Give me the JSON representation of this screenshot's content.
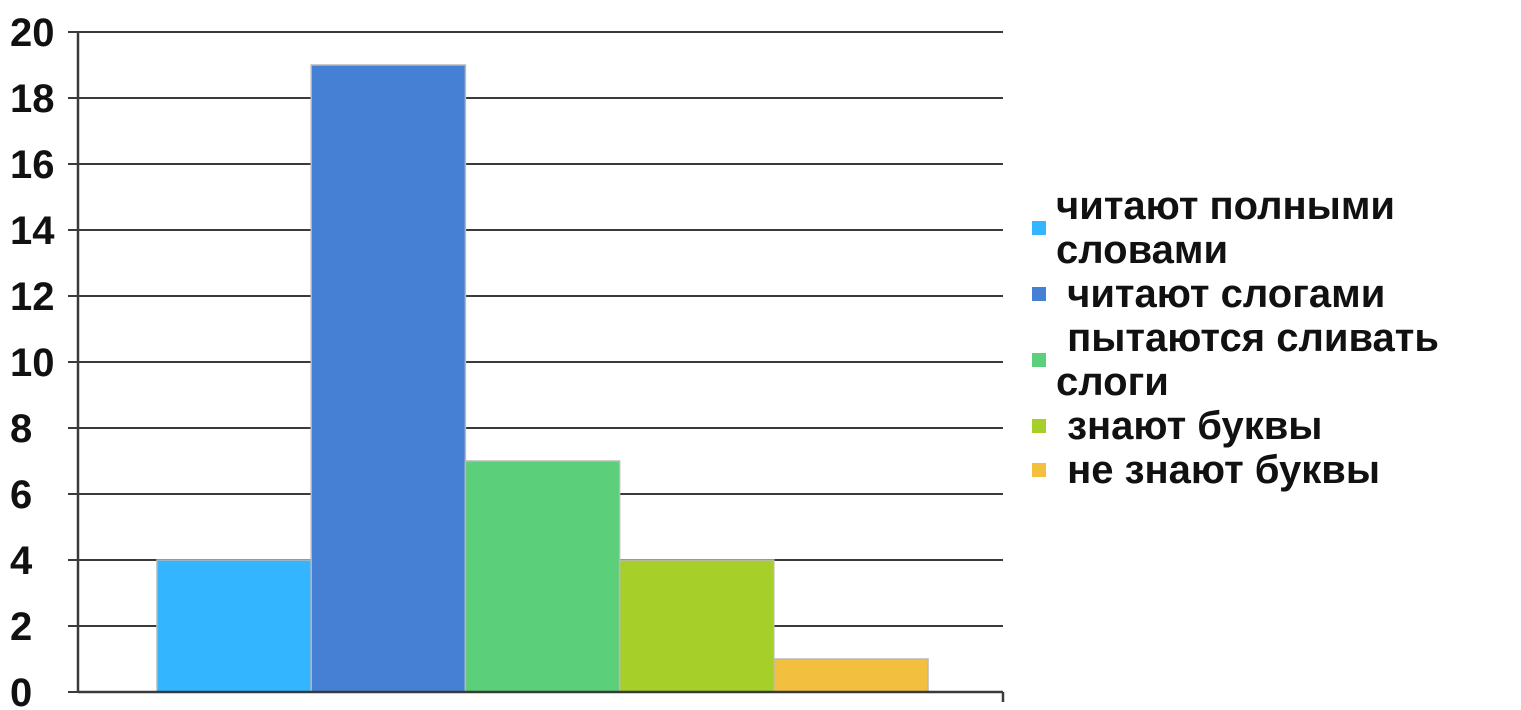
{
  "chart_data": {
    "type": "bar",
    "categories": [
      "читают полными словами",
      "читают слогами",
      "пытаются сливать слоги",
      "знают буквы",
      "не знают буквы"
    ],
    "values": [
      4,
      19,
      7,
      4,
      1
    ],
    "colors": [
      "#33b5ff",
      "#4680d4",
      "#5ccf7a",
      "#a6cf2a",
      "#f2bf3e"
    ],
    "ylim": [
      0,
      20
    ],
    "yticks": [
      "0",
      "2",
      "4",
      "6",
      "8",
      "10",
      "12",
      "14",
      "16",
      "18",
      "20"
    ],
    "grid": true,
    "legend_position": "right",
    "title": "",
    "xlabel": "",
    "ylabel": ""
  },
  "legend": {
    "items": [
      {
        "lines": [
          "читают полными",
          "словами"
        ]
      },
      {
        "lines": [
          " читают слогами"
        ]
      },
      {
        "lines": [
          " пытаются сливать",
          "слоги"
        ]
      },
      {
        "lines": [
          " знают буквы"
        ]
      },
      {
        "lines": [
          " не знают буквы"
        ]
      }
    ]
  }
}
